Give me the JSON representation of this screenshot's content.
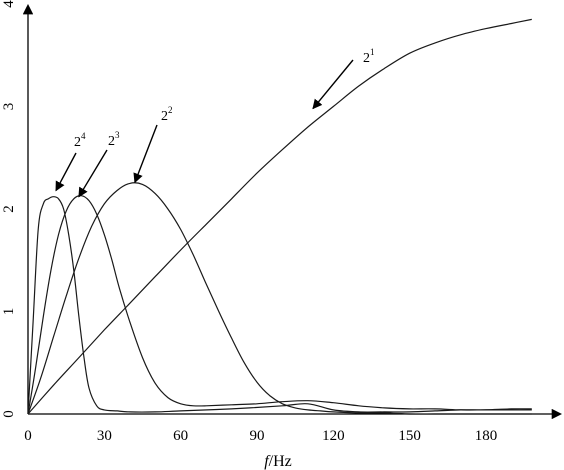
{
  "chart_data": {
    "type": "line",
    "title": "",
    "xlabel_italic": "f",
    "xlabel_unit": "/Hz",
    "ylabel": "",
    "xlim": [
      0,
      200
    ],
    "ylim": [
      0,
      4
    ],
    "x_ticks": [
      0,
      30,
      60,
      90,
      120,
      150,
      180
    ],
    "y_ticks": [
      0,
      1,
      2,
      3,
      4
    ],
    "grid": false,
    "series": [
      {
        "label_base": "2",
        "label_exp": "1",
        "x": [
          0,
          10,
          20,
          30,
          40,
          50,
          60,
          70,
          80,
          90,
          100,
          110,
          120,
          130,
          140,
          150,
          160,
          170,
          180,
          190,
          198
        ],
        "y": [
          0,
          0.28,
          0.55,
          0.82,
          1.08,
          1.34,
          1.6,
          1.85,
          2.1,
          2.35,
          2.58,
          2.8,
          3.0,
          3.2,
          3.37,
          3.52,
          3.62,
          3.7,
          3.76,
          3.81,
          3.85
        ],
        "arrow_target": [
          112,
          2.98
        ]
      },
      {
        "label_base": "2",
        "label_exp": "2",
        "x": [
          0,
          5,
          10,
          15,
          20,
          25,
          30,
          35,
          40,
          45,
          50,
          55,
          60,
          65,
          70,
          75,
          80,
          85,
          90,
          95,
          100,
          105,
          110,
          115,
          120,
          130,
          140,
          150,
          160,
          170,
          180,
          190,
          198
        ],
        "y": [
          0,
          0.35,
          0.75,
          1.15,
          1.52,
          1.83,
          2.05,
          2.18,
          2.25,
          2.24,
          2.15,
          2.0,
          1.8,
          1.55,
          1.27,
          1.0,
          0.74,
          0.5,
          0.31,
          0.18,
          0.1,
          0.06,
          0.04,
          0.03,
          0.02,
          0.01,
          0.01,
          0.0,
          0.0,
          0.0,
          0.0,
          0.0,
          0.0
        ],
        "arrow_target": [
          42,
          2.26
        ]
      },
      {
        "label_base": "2",
        "label_exp": "3",
        "x": [
          0,
          3,
          6,
          9,
          12,
          15,
          18,
          21,
          24,
          27,
          30,
          33,
          36,
          40,
          45,
          50,
          55,
          60,
          65,
          70,
          80,
          90,
          100,
          110,
          120,
          130,
          140,
          150,
          160,
          170,
          180,
          190,
          198
        ],
        "y": [
          0,
          0.45,
          0.95,
          1.4,
          1.75,
          1.98,
          2.1,
          2.13,
          2.08,
          1.95,
          1.75,
          1.5,
          1.22,
          0.9,
          0.55,
          0.3,
          0.16,
          0.1,
          0.08,
          0.08,
          0.09,
          0.1,
          0.12,
          0.13,
          0.11,
          0.08,
          0.06,
          0.05,
          0.05,
          0.04,
          0.04,
          0.04,
          0.04
        ],
        "arrow_target": [
          20,
          2.12
        ]
      },
      {
        "label_base": "2",
        "label_exp": "4",
        "x": [
          0,
          2,
          4,
          6,
          8,
          10,
          12,
          14,
          16,
          18,
          20,
          22,
          24,
          27,
          30,
          35,
          40,
          50,
          60,
          80,
          100,
          110,
          120,
          130,
          140,
          150,
          160,
          170,
          180,
          190,
          198
        ],
        "y": [
          0,
          0.9,
          1.8,
          2.05,
          2.1,
          2.12,
          2.1,
          2.0,
          1.75,
          1.4,
          0.95,
          0.55,
          0.25,
          0.08,
          0.04,
          0.03,
          0.02,
          0.02,
          0.03,
          0.05,
          0.08,
          0.1,
          0.04,
          0.02,
          0.02,
          0.02,
          0.03,
          0.04,
          0.04,
          0.05,
          0.05
        ],
        "arrow_target": [
          11,
          2.18
        ]
      }
    ]
  }
}
